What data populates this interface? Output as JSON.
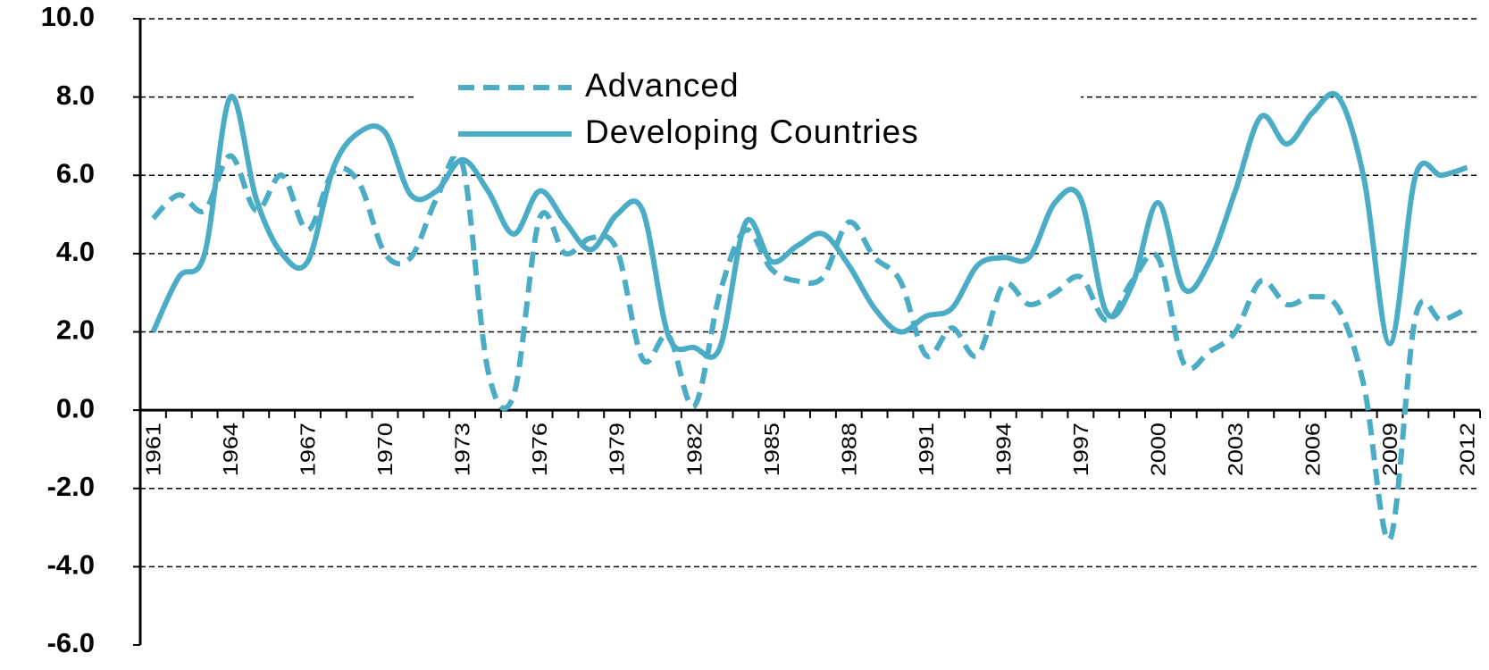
{
  "chart_data": {
    "type": "line",
    "categories": [
      "1961",
      null,
      null,
      "1964",
      null,
      null,
      "1967",
      null,
      null,
      "1970",
      null,
      null,
      "1973",
      null,
      null,
      "1976",
      null,
      null,
      "1979",
      null,
      null,
      "1982",
      null,
      null,
      "1985",
      null,
      null,
      "1988",
      null,
      null,
      "1991",
      null,
      null,
      "1994",
      null,
      null,
      "1997",
      null,
      null,
      "2000",
      null,
      null,
      "2003",
      null,
      null,
      "2006",
      null,
      null,
      "2009",
      null,
      null,
      "2012"
    ],
    "series": [
      {
        "name": "Advanced",
        "color": "#4bacc6",
        "dash": true,
        "values": [
          4.9,
          5.5,
          5.1,
          6.5,
          5.1,
          6.0,
          4.6,
          6.1,
          5.8,
          4.0,
          3.9,
          5.4,
          6.3,
          1.0,
          0.4,
          4.9,
          4.0,
          4.4,
          4.1,
          1.3,
          1.9,
          0.1,
          3.0,
          4.6,
          3.6,
          3.3,
          3.4,
          4.8,
          3.9,
          3.3,
          1.4,
          2.1,
          1.4,
          3.2,
          2.7,
          3.0,
          3.4,
          2.3,
          3.3,
          3.9,
          1.2,
          1.5,
          2.0,
          3.3,
          2.7,
          2.9,
          2.6,
          0.6,
          -3.3,
          2.4,
          2.3,
          2.6
        ]
      },
      {
        "name": "Developing Countries",
        "color": "#4bacc6",
        "dash": false,
        "values": [
          2.0,
          3.4,
          4.0,
          8.0,
          5.4,
          4.0,
          3.8,
          6.2,
          7.1,
          7.1,
          5.5,
          5.6,
          6.4,
          5.6,
          4.5,
          5.6,
          4.8,
          4.1,
          5.0,
          5.1,
          1.9,
          1.6,
          1.6,
          4.8,
          3.8,
          4.2,
          4.5,
          3.7,
          2.6,
          2.0,
          2.4,
          2.6,
          3.7,
          3.9,
          3.9,
          5.3,
          5.4,
          2.5,
          3.2,
          5.3,
          3.1,
          3.8,
          5.6,
          7.5,
          6.8,
          7.6,
          8.0,
          5.9,
          1.7,
          6.0,
          6.0,
          6.2
        ]
      }
    ],
    "ylim": [
      -6,
      10
    ],
    "yticks": [
      {
        "value": -6,
        "label": "-6.0"
      },
      {
        "value": -4,
        "label": "-4.0"
      },
      {
        "value": -2,
        "label": "-2.0"
      },
      {
        "value": 0,
        "label": "0.0"
      },
      {
        "value": 2,
        "label": "2.0"
      },
      {
        "value": 4,
        "label": "4.0"
      },
      {
        "value": 6,
        "label": "6.0"
      },
      {
        "value": 8,
        "label": "8.0"
      },
      {
        "value": 10,
        "label": "10.0"
      }
    ],
    "grid": true
  }
}
